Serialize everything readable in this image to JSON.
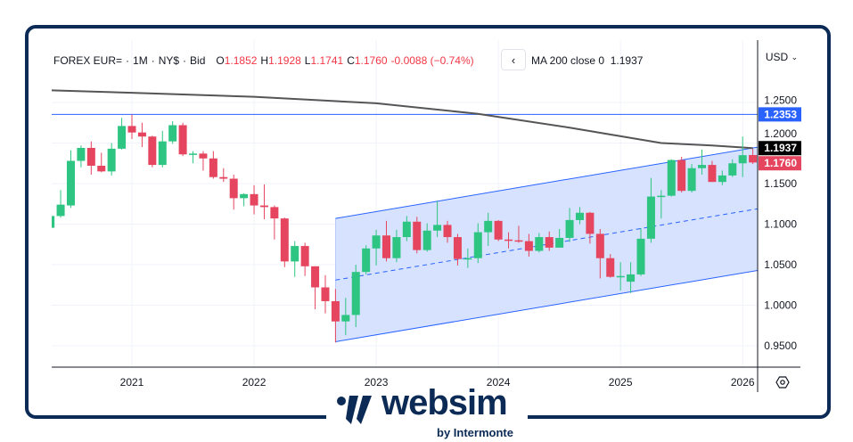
{
  "header": {
    "symbol": "FOREX EUR=",
    "interval": "1M",
    "exchange": "NY$",
    "price_type": "Bid",
    "open_label": "O",
    "open": "1.1852",
    "high_label": "H",
    "high": "1.1928",
    "low_label": "L",
    "low": "1.1741",
    "close_label": "C",
    "close": "1.1760",
    "change": "-0.0088 (−0.74%)",
    "back_icon": "chevron-left-icon",
    "ma_label": "MA 200 close 0",
    "ma_value": "1.1937",
    "currency": "USD"
  },
  "logo": {
    "name": "websim",
    "sub": "by Intermonte"
  },
  "colors": {
    "up": "#2dc581",
    "down": "#e5455e",
    "ma": "#555555",
    "level": "#2962ff",
    "channel_fill": "#d1dffe",
    "frame": "#0b2a55",
    "close_badge": "#e5455e",
    "ma_badge": "#000000",
    "level_badge": "#2962ff"
  },
  "chart_data": {
    "type": "candlestick",
    "title": "",
    "xlabel": "",
    "ylabel": "",
    "interval": "monthly",
    "x_ticks": [
      "2021",
      "2022",
      "2023",
      "2024",
      "2025",
      "2026"
    ],
    "y_ticks": [
      "0.9500",
      "1.0000",
      "1.0500",
      "1.1000",
      "1.1500",
      "1.2000",
      "1.2500"
    ],
    "ylim": [
      0.92,
      1.285
    ],
    "grid": true,
    "candles_columns": [
      "date",
      "open",
      "high",
      "low",
      "close"
    ],
    "candles": [
      [
        "2020-05",
        1.0955,
        1.111,
        1.094,
        1.11
      ],
      [
        "2020-06",
        1.11,
        1.142,
        1.108,
        1.124
      ],
      [
        "2020-07",
        1.123,
        1.191,
        1.12,
        1.178
      ],
      [
        "2020-08",
        1.178,
        1.197,
        1.17,
        1.194
      ],
      [
        "2020-09",
        1.194,
        1.202,
        1.161,
        1.172
      ],
      [
        "2020-10",
        1.172,
        1.188,
        1.164,
        1.165
      ],
      [
        "2020-11",
        1.165,
        1.2,
        1.16,
        1.193
      ],
      [
        "2020-12",
        1.193,
        1.231,
        1.192,
        1.221
      ],
      [
        "2021-01",
        1.221,
        1.235,
        1.205,
        1.213
      ],
      [
        "2021-02",
        1.213,
        1.225,
        1.195,
        1.208
      ],
      [
        "2021-03",
        1.208,
        1.209,
        1.17,
        1.173
      ],
      [
        "2021-04",
        1.173,
        1.215,
        1.17,
        1.202
      ],
      [
        "2021-05",
        1.202,
        1.227,
        1.199,
        1.222
      ],
      [
        "2021-06",
        1.222,
        1.225,
        1.184,
        1.186
      ],
      [
        "2021-07",
        1.186,
        1.19,
        1.175,
        1.187
      ],
      [
        "2021-08",
        1.187,
        1.19,
        1.166,
        1.181
      ],
      [
        "2021-09",
        1.181,
        1.19,
        1.156,
        1.158
      ],
      [
        "2021-10",
        1.158,
        1.169,
        1.152,
        1.156
      ],
      [
        "2021-11",
        1.156,
        1.161,
        1.118,
        1.132
      ],
      [
        "2021-12",
        1.132,
        1.138,
        1.122,
        1.137
      ],
      [
        "2022-01",
        1.137,
        1.148,
        1.112,
        1.123
      ],
      [
        "2022-02",
        1.123,
        1.149,
        1.106,
        1.121
      ],
      [
        "2022-03",
        1.121,
        1.123,
        1.081,
        1.107
      ],
      [
        "2022-04",
        1.107,
        1.108,
        1.047,
        1.054
      ],
      [
        "2022-05",
        1.054,
        1.079,
        1.035,
        1.073
      ],
      [
        "2022-06",
        1.073,
        1.077,
        1.036,
        1.048
      ],
      [
        "2022-07",
        1.048,
        1.048,
        0.995,
        1.022
      ],
      [
        "2022-08",
        1.022,
        1.037,
        0.99,
        1.005
      ],
      [
        "2022-09",
        1.005,
        1.02,
        0.954,
        0.98
      ],
      [
        "2022-10",
        0.98,
        1.009,
        0.963,
        0.988
      ],
      [
        "2022-11",
        0.988,
        1.05,
        0.973,
        1.041
      ],
      [
        "2022-12",
        1.041,
        1.074,
        1.038,
        1.07
      ],
      [
        "2023-01",
        1.07,
        1.093,
        1.049,
        1.086
      ],
      [
        "2023-02",
        1.086,
        1.104,
        1.054,
        1.058
      ],
      [
        "2023-03",
        1.058,
        1.093,
        1.053,
        1.084
      ],
      [
        "2023-04",
        1.084,
        1.11,
        1.079,
        1.103
      ],
      [
        "2023-05",
        1.103,
        1.109,
        1.064,
        1.068
      ],
      [
        "2023-06",
        1.068,
        1.101,
        1.066,
        1.092
      ],
      [
        "2023-07",
        1.092,
        1.128,
        1.084,
        1.099
      ],
      [
        "2023-08",
        1.099,
        1.104,
        1.077,
        1.084
      ],
      [
        "2023-09",
        1.084,
        1.088,
        1.049,
        1.057
      ],
      [
        "2023-10",
        1.057,
        1.07,
        1.046,
        1.058
      ],
      [
        "2023-11",
        1.058,
        1.101,
        1.052,
        1.09
      ],
      [
        "2023-12",
        1.09,
        1.114,
        1.073,
        1.104
      ],
      [
        "2024-01",
        1.104,
        1.105,
        1.079,
        1.081
      ],
      [
        "2024-02",
        1.081,
        1.09,
        1.07,
        1.08
      ],
      [
        "2024-03",
        1.08,
        1.098,
        1.077,
        1.079
      ],
      [
        "2024-04",
        1.079,
        1.088,
        1.06,
        1.067
      ],
      [
        "2024-05",
        1.067,
        1.089,
        1.065,
        1.084
      ],
      [
        "2024-06",
        1.084,
        1.091,
        1.067,
        1.071
      ],
      [
        "2024-07",
        1.071,
        1.094,
        1.071,
        1.083
      ],
      [
        "2024-08",
        1.083,
        1.12,
        1.078,
        1.105
      ],
      [
        "2024-09",
        1.105,
        1.121,
        1.1,
        1.114
      ],
      [
        "2024-10",
        1.114,
        1.115,
        1.076,
        1.088
      ],
      [
        "2024-11",
        1.088,
        1.094,
        1.033,
        1.058
      ],
      [
        "2024-12",
        1.058,
        1.063,
        1.034,
        1.035
      ],
      [
        "2025-01",
        1.035,
        1.053,
        1.018,
        1.036
      ],
      [
        "2025-02",
        1.029,
        1.053,
        1.015,
        1.038
      ],
      [
        "2025-03",
        1.038,
        1.095,
        1.036,
        1.082
      ],
      [
        "2025-04",
        1.082,
        1.157,
        1.077,
        1.134
      ],
      [
        "2025-05",
        1.134,
        1.142,
        1.107,
        1.135
      ],
      [
        "2025-06",
        1.135,
        1.18,
        1.134,
        1.179
      ],
      [
        "2025-07",
        1.179,
        1.183,
        1.139,
        1.141
      ],
      [
        "2025-08",
        1.141,
        1.174,
        1.139,
        1.169
      ],
      [
        "2025-09",
        1.169,
        1.192,
        1.161,
        1.173
      ],
      [
        "2025-10",
        1.173,
        1.178,
        1.152,
        1.152
      ],
      [
        "2025-11",
        1.152,
        1.166,
        1.148,
        1.16
      ],
      [
        "2025-12",
        1.16,
        1.18,
        1.158,
        1.175
      ],
      [
        "2026-01",
        1.175,
        1.208,
        1.158,
        1.185
      ],
      [
        "2026-02",
        1.1852,
        1.1928,
        1.1741,
        1.176
      ]
    ],
    "ma200": [
      [
        "2020-05",
        1.265
      ],
      [
        "2021-01",
        1.262
      ],
      [
        "2022-01",
        1.257
      ],
      [
        "2023-01",
        1.249
      ],
      [
        "2023-11",
        1.236
      ],
      [
        "2024-08",
        1.219
      ],
      [
        "2025-05",
        1.2
      ],
      [
        "2025-10",
        1.197
      ],
      [
        "2026-02",
        1.1937
      ]
    ],
    "horizontal_level": 1.2353,
    "regression_channel": {
      "start": "2022-09",
      "end": "2026-03",
      "upper": [
        1.107,
        1.196
      ],
      "middle": [
        1.031,
        1.12
      ],
      "lower": [
        0.955,
        1.044
      ]
    },
    "price_badges": [
      {
        "label": "1.2353",
        "value": 1.2353,
        "kind": "level"
      },
      {
        "label": "1.1937",
        "value": 1.1937,
        "kind": "ma"
      },
      {
        "label": "1.1760",
        "value": 1.176,
        "kind": "close"
      }
    ]
  }
}
